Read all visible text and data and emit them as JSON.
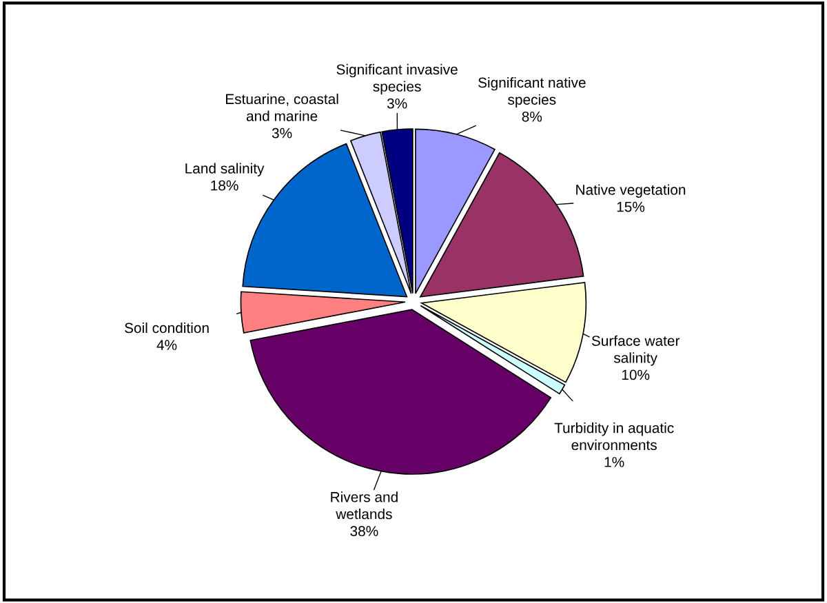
{
  "chart_data": {
    "type": "pie",
    "categories": [
      "Significant native\nspecies",
      "Native vegetation",
      "Surface water\nsalinity",
      "Turbidity in aquatic\nenvironments",
      "Rivers and\nwetlands",
      "Soil condition",
      "Land salinity",
      "Estuarine, coastal\nand marine",
      "Significant invasive\nspecies"
    ],
    "values": [
      8,
      15,
      10,
      1,
      38,
      4,
      18,
      3,
      3
    ],
    "value_labels": [
      "8%",
      "15%",
      "10%",
      "1%",
      "38%",
      "4%",
      "18%",
      "3%",
      "3%"
    ],
    "colors": [
      "#9999ff",
      "#993366",
      "#ffffcc",
      "#ccffff",
      "#660066",
      "#ff8080",
      "#0066cc",
      "#ccccff",
      "#000080"
    ],
    "legend": false
  }
}
